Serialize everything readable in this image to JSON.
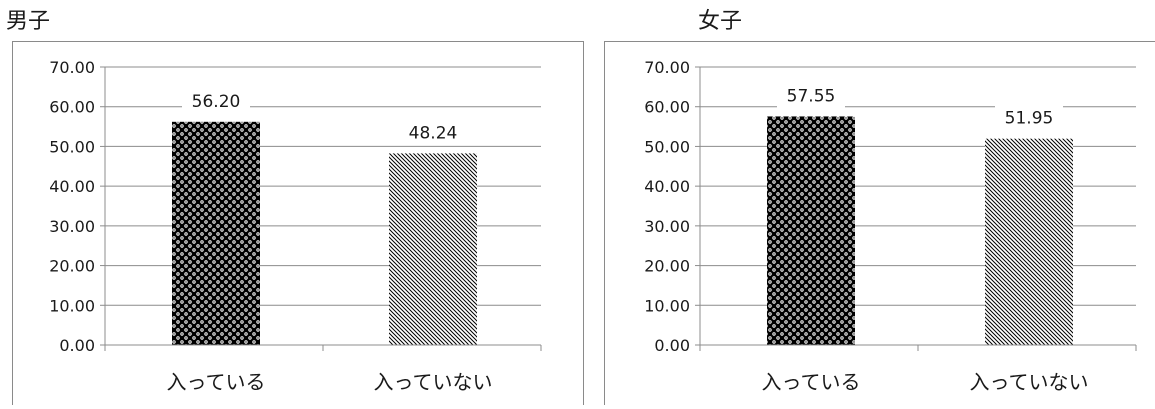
{
  "chart_data": [
    {
      "type": "bar",
      "title": "男子",
      "categories": [
        "入っている",
        "入っていない"
      ],
      "values": [
        56.2,
        48.24
      ],
      "value_labels": [
        "56.20",
        "48.24"
      ],
      "y_ticks": [
        "0.00",
        "10.00",
        "20.00",
        "30.00",
        "40.00",
        "50.00",
        "60.00",
        "70.00"
      ],
      "ylim": [
        0,
        70
      ],
      "grid": true,
      "legend": "none"
    },
    {
      "type": "bar",
      "title": "女子",
      "categories": [
        "入っている",
        "入っていない"
      ],
      "values": [
        57.55,
        51.95
      ],
      "value_labels": [
        "57.55",
        "51.95"
      ],
      "y_ticks": [
        "0.00",
        "10.00",
        "20.00",
        "30.00",
        "40.00",
        "50.00",
        "60.00",
        "70.00"
      ],
      "ylim": [
        0,
        70
      ],
      "grid": true,
      "legend": "none"
    }
  ]
}
